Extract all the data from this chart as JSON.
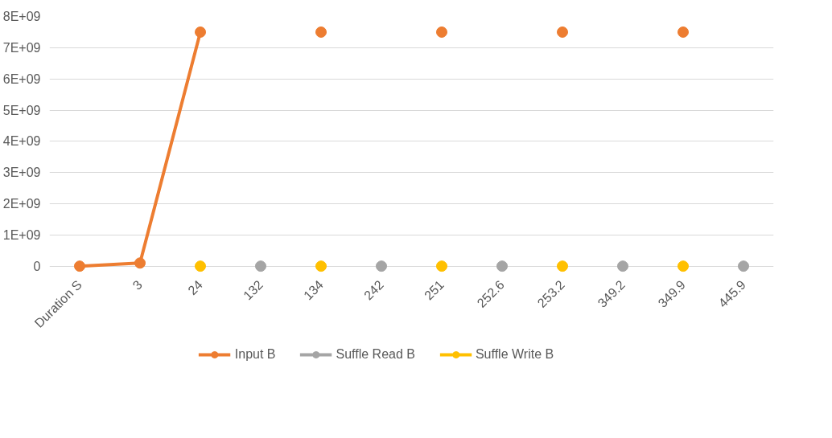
{
  "chart_data": {
    "type": "line",
    "categories": [
      "Duration S",
      "3",
      "24",
      "132",
      "134",
      "242",
      "251",
      "252.6",
      "253.2",
      "349.2",
      "349.9",
      "445.9"
    ],
    "series": [
      {
        "name": "Input B",
        "color": "#ed7d31",
        "values": [
          0,
          100000000,
          7500000000,
          null,
          7500000000,
          null,
          7500000000,
          null,
          7500000000,
          null,
          7500000000,
          null
        ]
      },
      {
        "name": "Suffle Read B",
        "type": "scatter",
        "color": "#a5a5a5",
        "values": [
          null,
          null,
          null,
          0,
          null,
          0,
          null,
          0,
          null,
          0,
          null,
          0
        ]
      },
      {
        "name": "Suffle Write B",
        "type": "scatter",
        "color": "#ffc000",
        "values": [
          null,
          null,
          0,
          null,
          0,
          null,
          0,
          null,
          0,
          null,
          0,
          null
        ]
      }
    ],
    "ylim": [
      0,
      8000000000
    ],
    "yticks": [
      0,
      {
        "value": 1000000000,
        "label": "1E+09"
      },
      {
        "value": 2000000000,
        "label": "2E+09"
      },
      {
        "value": 3000000000,
        "label": "3E+09"
      },
      {
        "value": 4000000000,
        "label": "4E+09"
      },
      {
        "value": 5000000000,
        "label": "5E+09"
      },
      {
        "value": 6000000000,
        "label": "6E+09"
      },
      {
        "value": 7000000000,
        "label": "7E+09"
      },
      {
        "value": 8000000000,
        "label": "8E+09"
      }
    ],
    "grid": "y",
    "legend": "bottom",
    "marker": "circle",
    "line_style": "solid"
  }
}
